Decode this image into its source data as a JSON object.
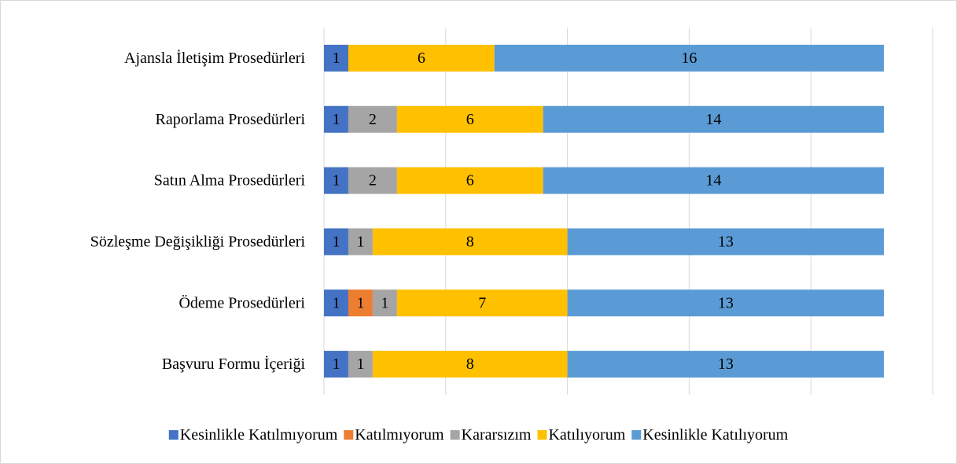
{
  "chart_data": {
    "type": "stacked-bar-horizontal",
    "categories": [
      "Ajansla İletişim Prosedürleri",
      "Raporlama Prosedürleri",
      "Satın Alma Prosedürleri",
      "Sözleşme Değişikliği Prosedürleri",
      "Ödeme Prosedürleri",
      "Başvuru Formu İçeriği"
    ],
    "series": [
      {
        "name": "Kesinlikle Katılmıyorum",
        "color": "#4472c4",
        "values": [
          1,
          1,
          1,
          1,
          1,
          1
        ]
      },
      {
        "name": "Katılmıyorum",
        "color": "#ed7d31",
        "values": [
          null,
          null,
          null,
          null,
          1,
          null
        ]
      },
      {
        "name": "Kararsızım",
        "color": "#a5a5a5",
        "values": [
          null,
          2,
          2,
          1,
          1,
          1
        ]
      },
      {
        "name": "Katılıyorum",
        "color": "#ffc000",
        "values": [
          6,
          6,
          6,
          8,
          7,
          8
        ]
      },
      {
        "name": "Kesinlikle Katılıyorum",
        "color": "#5b9bd5",
        "values": [
          16,
          14,
          14,
          13,
          13,
          13
        ]
      }
    ],
    "xlim": [
      0,
      25
    ],
    "xticks": [
      0,
      5,
      10,
      15,
      20,
      25
    ],
    "grid": true,
    "legend": "bottom"
  }
}
